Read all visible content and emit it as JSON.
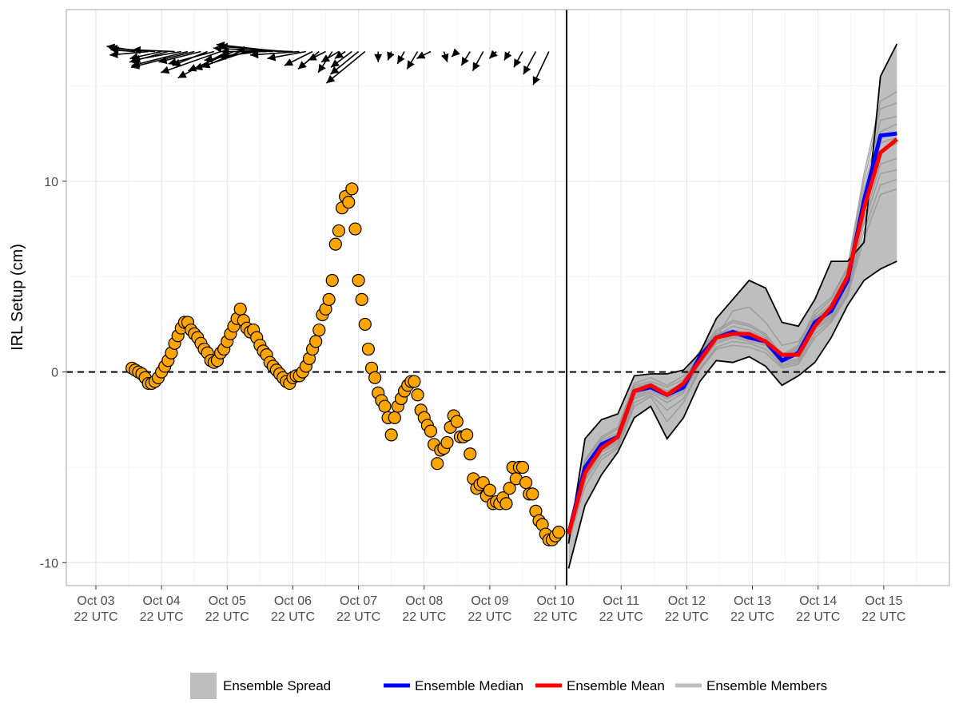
{
  "chart_data": {
    "type": "line",
    "ylabel": "IRL Setup (cm)",
    "xlabel": "",
    "xlim": [
      -0.45,
      13.0
    ],
    "ylim": [
      -11.2,
      19.0
    ],
    "x_tick_labels": [
      [
        "Oct 03",
        "22 UTC"
      ],
      [
        "Oct 04",
        "22 UTC"
      ],
      [
        "Oct 05",
        "22 UTC"
      ],
      [
        "Oct 06",
        "22 UTC"
      ],
      [
        "Oct 07",
        "22 UTC"
      ],
      [
        "Oct 08",
        "22 UTC"
      ],
      [
        "Oct 09",
        "22 UTC"
      ],
      [
        "Oct 10",
        "22 UTC"
      ],
      [
        "Oct 11",
        "22 UTC"
      ],
      [
        "Oct 12",
        "22 UTC"
      ],
      [
        "Oct 13",
        "22 UTC"
      ],
      [
        "Oct 14",
        "22 UTC"
      ],
      [
        "Oct 15",
        "22 UTC"
      ]
    ],
    "y_ticks": [
      -10,
      0,
      10
    ],
    "y_tick_labels": [
      "-10",
      "0",
      "10"
    ],
    "reference_line_y": 0,
    "forecast_start_x": 7.17,
    "grid": true,
    "legend": {
      "position": "bottom",
      "entries": [
        {
          "label": "Ensemble Spread",
          "kind": "fill",
          "color": "#bebebe"
        },
        {
          "label": "Ensemble Median",
          "kind": "line",
          "color": "#0000ff"
        },
        {
          "label": "Ensemble Mean",
          "kind": "line",
          "color": "#ff0000"
        },
        {
          "label": "Ensemble Members",
          "kind": "line",
          "color": "#bebebe"
        }
      ]
    },
    "colors": {
      "observed_fill": "#ffa500",
      "spread": "#bebebe",
      "median": "#0000ff",
      "mean": "#ff0000",
      "members": "#999999",
      "bounds": "#000000"
    },
    "observed": {
      "x": [
        0.55,
        0.6,
        0.65,
        0.7,
        0.75,
        0.8,
        0.85,
        0.9,
        0.95,
        1.0,
        1.05,
        1.1,
        1.15,
        1.2,
        1.25,
        1.3,
        1.35,
        1.4,
        1.45,
        1.5,
        1.55,
        1.6,
        1.65,
        1.7,
        1.75,
        1.8,
        1.85,
        1.9,
        1.95,
        2.0,
        2.05,
        2.1,
        2.15,
        2.2,
        2.25,
        2.3,
        2.35,
        2.4,
        2.45,
        2.5,
        2.55,
        2.6,
        2.65,
        2.7,
        2.75,
        2.8,
        2.85,
        2.9,
        2.95,
        3.0,
        3.05,
        3.1,
        3.15,
        3.2,
        3.25,
        3.3,
        3.35,
        3.4,
        3.45,
        3.5,
        3.55,
        3.6,
        3.65,
        3.7,
        3.75,
        3.8,
        3.85,
        3.9,
        3.95,
        4.0,
        4.05,
        4.1,
        4.15,
        4.2,
        4.25,
        4.3,
        4.35,
        4.4,
        4.45,
        4.5,
        4.55,
        4.6,
        4.65,
        4.7,
        4.75,
        4.8,
        4.85,
        4.9,
        4.95,
        5.0,
        5.05,
        5.1,
        5.15,
        5.2,
        5.25,
        5.3,
        5.35,
        5.4,
        5.45,
        5.5,
        5.55,
        5.6,
        5.65,
        5.7,
        5.75,
        5.8,
        5.85,
        5.9,
        5.95,
        6.0,
        6.05,
        6.1,
        6.15,
        6.2,
        6.25,
        6.3,
        6.35,
        6.4,
        6.45,
        6.5,
        6.55,
        6.6,
        6.65,
        6.7,
        6.75,
        6.8,
        6.85,
        6.9,
        6.95,
        7.0,
        7.05
      ],
      "y": [
        0.2,
        0.1,
        0.0,
        -0.1,
        -0.3,
        -0.6,
        -0.6,
        -0.5,
        -0.3,
        0.0,
        0.3,
        0.6,
        1.0,
        1.5,
        1.9,
        2.3,
        2.6,
        2.6,
        2.2,
        2.0,
        1.8,
        1.5,
        1.2,
        1.0,
        0.6,
        0.5,
        0.6,
        1.0,
        1.2,
        1.6,
        2.0,
        2.4,
        2.8,
        3.3,
        2.7,
        2.3,
        2.1,
        2.2,
        1.8,
        1.4,
        1.1,
        0.9,
        0.5,
        0.3,
        0.1,
        -0.1,
        -0.3,
        -0.5,
        -0.6,
        -0.3,
        -0.2,
        -0.2,
        0.0,
        0.3,
        0.7,
        1.2,
        1.6,
        2.2,
        3.0,
        3.3,
        3.8,
        4.8,
        6.7,
        7.4,
        8.6,
        9.2,
        8.9,
        9.6,
        7.5,
        4.8,
        3.8,
        2.5,
        1.2,
        0.2,
        -0.3,
        -1.1,
        -1.5,
        -1.8,
        -2.4,
        -3.3,
        -2.4,
        -1.8,
        -1.4,
        -1.0,
        -0.7,
        -0.5,
        -0.5,
        -1.2,
        -2.0,
        -2.4,
        -2.8,
        -3.1,
        -3.8,
        -4.8,
        -4.1,
        -4.0,
        -3.7,
        -2.9,
        -2.3,
        -2.6,
        -3.4,
        -3.4,
        -3.3,
        -4.3,
        -5.6,
        -6.1,
        -5.9,
        -5.8,
        -6.5,
        -6.2,
        -6.9,
        -6.8,
        -6.9,
        -6.6,
        -6.9,
        -6.1,
        -5.0,
        -5.6,
        -5.0,
        -5.0,
        -5.8,
        -6.4,
        -6.4,
        -7.3,
        -7.8,
        -8.0,
        -8.5,
        -8.8,
        -8.8,
        -8.6,
        -8.4
      ]
    },
    "forecast": {
      "x": [
        7.2,
        7.45,
        7.7,
        7.95,
        8.2,
        8.45,
        8.7,
        8.95,
        9.2,
        9.45,
        9.7,
        9.95,
        10.2,
        10.45,
        10.7,
        10.95,
        11.2,
        11.45,
        11.7,
        11.95,
        12.2
      ],
      "upper": [
        -9.0,
        -3.5,
        -2.5,
        -2.2,
        -0.2,
        -0.1,
        -0.1,
        0.1,
        1.0,
        2.8,
        3.8,
        4.8,
        4.4,
        2.6,
        2.4,
        3.8,
        5.8,
        5.8,
        6.8,
        15.5,
        17.2
      ],
      "lower": [
        -10.3,
        -7.0,
        -5.4,
        -4.2,
        -2.4,
        -1.8,
        -3.5,
        -2.4,
        -0.5,
        0.6,
        0.5,
        0.8,
        0.3,
        -0.7,
        -0.2,
        0.5,
        1.8,
        3.5,
        4.8,
        5.4,
        5.8
      ],
      "median": [
        -8.5,
        -5.0,
        -3.8,
        -3.4,
        -1.0,
        -0.8,
        -1.2,
        -0.8,
        0.8,
        1.8,
        2.1,
        1.8,
        1.6,
        0.6,
        1.0,
        2.6,
        3.2,
        4.8,
        9.0,
        12.4,
        12.5
      ],
      "mean": [
        -8.5,
        -5.3,
        -4.0,
        -3.4,
        -1.0,
        -0.7,
        -1.2,
        -0.6,
        0.6,
        1.8,
        2.0,
        2.0,
        1.6,
        0.9,
        0.9,
        2.4,
        3.4,
        5.0,
        8.6,
        11.5,
        12.2
      ],
      "members": [
        [
          -8.5,
          -5.0,
          -3.6,
          -3.2,
          -0.8,
          -0.6,
          -1.0,
          -0.6,
          1.0,
          2.0,
          2.2,
          2.0,
          1.7,
          0.8,
          1.2,
          2.8,
          3.6,
          5.2,
          9.6,
          13.2,
          13.4
        ],
        [
          -8.8,
          -5.6,
          -4.2,
          -3.8,
          -1.4,
          -1.1,
          -1.6,
          -1.1,
          0.4,
          1.5,
          1.8,
          1.6,
          1.4,
          0.4,
          0.6,
          2.2,
          2.8,
          4.2,
          7.8,
          10.4,
          10.6
        ],
        [
          -8.2,
          -4.6,
          -3.4,
          -2.9,
          -0.6,
          -0.3,
          -0.7,
          -0.2,
          1.1,
          2.2,
          2.7,
          2.5,
          2.0,
          0.9,
          1.4,
          3.2,
          3.9,
          5.5,
          10.4,
          14.2,
          14.7
        ],
        [
          -8.6,
          -5.2,
          -4.0,
          -3.6,
          -1.2,
          -0.9,
          -1.3,
          -0.9,
          0.7,
          1.7,
          2.0,
          1.8,
          1.5,
          0.6,
          0.9,
          2.4,
          3.0,
          4.6,
          8.4,
          11.6,
          12.0
        ],
        [
          -8.9,
          -6.0,
          -4.6,
          -4.0,
          -1.8,
          -1.3,
          -2.6,
          -1.6,
          0.1,
          1.2,
          1.4,
          1.3,
          1.0,
          0.2,
          0.4,
          1.8,
          2.6,
          4.0,
          7.0,
          9.3,
          9.6
        ],
        [
          -8.4,
          -4.9,
          -3.7,
          -3.3,
          -0.9,
          -0.7,
          -1.1,
          -0.7,
          0.9,
          1.9,
          2.4,
          2.2,
          1.8,
          0.7,
          1.1,
          2.7,
          3.4,
          5.0,
          9.2,
          12.6,
          13.0
        ],
        [
          -8.7,
          -5.4,
          -4.1,
          -3.7,
          -1.3,
          -1.0,
          -1.4,
          -1.0,
          0.5,
          1.6,
          1.9,
          1.7,
          1.5,
          0.5,
          0.7,
          2.3,
          2.9,
          4.4,
          8.0,
          10.9,
          11.2
        ],
        [
          -8.3,
          -4.7,
          -3.5,
          -3.0,
          -0.7,
          -0.5,
          -0.8,
          -0.4,
          1.0,
          2.1,
          2.6,
          2.4,
          1.9,
          0.8,
          1.3,
          3.0,
          3.8,
          5.4,
          10.0,
          13.8,
          14.1
        ],
        [
          -8.6,
          -5.1,
          -3.9,
          -3.5,
          -1.1,
          -0.8,
          -1.2,
          -0.8,
          0.8,
          1.8,
          3.2,
          3.4,
          2.6,
          1.4,
          1.6,
          2.9,
          3.3,
          4.9,
          8.8,
          12.0,
          12.3
        ],
        [
          -8.8,
          -5.7,
          -4.4,
          -3.9,
          -1.6,
          -1.2,
          -2.0,
          -1.4,
          0.2,
          1.3,
          1.6,
          1.5,
          1.2,
          0.3,
          0.5,
          2.0,
          2.7,
          4.1,
          7.4,
          9.8,
          10.1
        ]
      ]
    },
    "wind_arrows": {
      "description_only_for_script": false,
      "x": [
        0.6,
        0.7,
        0.8,
        0.9,
        1.0,
        1.1,
        1.2,
        1.3,
        1.4,
        1.5,
        1.6,
        1.7,
        1.8,
        1.9,
        2.0,
        2.1,
        2.2,
        2.3,
        2.4,
        2.5,
        2.6,
        2.7,
        2.8,
        2.9,
        3.0,
        3.1,
        3.2,
        3.3,
        3.4,
        3.5,
        3.6,
        3.7,
        3.8,
        3.9,
        4.0,
        4.1,
        4.3,
        4.5,
        4.7,
        4.9,
        5.1,
        5.3,
        5.5,
        5.7,
        5.9,
        6.1,
        6.3,
        6.5,
        6.7,
        6.9
      ],
      "u": [
        -1.4,
        -2.0,
        -2.2,
        -2.6,
        -1.8,
        -2.2,
        -2.4,
        -2.8,
        -3.2,
        -3.6,
        -2.4,
        -2.0,
        -2.6,
        -3.4,
        -2.8,
        -2.6,
        -2.2,
        -3.0,
        -2.8,
        -2.4,
        -2.6,
        -3.4,
        -3.6,
        -3.8,
        -3.2,
        -2.8,
        -2.2,
        -1.6,
        -1.2,
        -1.0,
        -0.8,
        -1.0,
        -0.6,
        -1.2,
        -1.6,
        -2.2,
        0.0,
        -0.2,
        -0.4,
        -0.6,
        -0.8,
        0.2,
        -0.3,
        -0.5,
        -0.6,
        -0.4,
        -0.3,
        -0.5,
        -0.7,
        -0.9
      ],
      "v": [
        0.1,
        0.3,
        -0.2,
        0.2,
        -0.4,
        -0.6,
        0.1,
        -0.5,
        -0.8,
        -0.9,
        -0.6,
        -0.8,
        -0.7,
        -1.2,
        -1.5,
        -1.1,
        -0.9,
        -1.0,
        -0.5,
        -0.3,
        0.0,
        0.2,
        0.4,
        0.3,
        0.1,
        -0.2,
        -0.4,
        -0.8,
        -1.0,
        -0.5,
        -1.2,
        -0.6,
        -0.4,
        -0.9,
        -1.3,
        -1.8,
        -0.6,
        -0.5,
        -0.7,
        -1.0,
        -0.4,
        -0.6,
        -0.3,
        -0.8,
        -1.1,
        -0.4,
        -0.5,
        -0.9,
        -1.3,
        -1.9
      ]
    }
  }
}
